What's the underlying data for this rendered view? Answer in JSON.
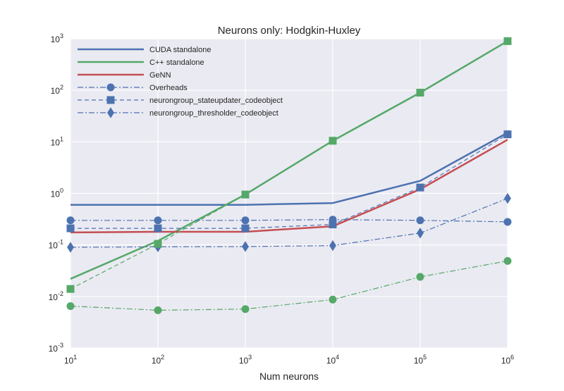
{
  "chart_data": {
    "type": "line",
    "title": "Neurons only: Hodgkin-Huxley",
    "xlabel": "Num neurons",
    "ylabel": "",
    "x_scale": "log",
    "y_scale": "log",
    "x": [
      10,
      100,
      1000,
      10000,
      100000,
      1000000
    ],
    "xlim": [
      10,
      1000000
    ],
    "ylim": [
      0.001,
      1000
    ],
    "x_ticks": [
      {
        "value": 10,
        "base": "10",
        "exp": "1"
      },
      {
        "value": 100,
        "base": "10",
        "exp": "2"
      },
      {
        "value": 1000,
        "base": "10",
        "exp": "3"
      },
      {
        "value": 10000,
        "base": "10",
        "exp": "4"
      },
      {
        "value": 100000,
        "base": "10",
        "exp": "5"
      },
      {
        "value": 1000000,
        "base": "10",
        "exp": "6"
      }
    ],
    "y_ticks": [
      {
        "value": 0.001,
        "base": "10",
        "exp": "-3"
      },
      {
        "value": 0.01,
        "base": "10",
        "exp": "-2"
      },
      {
        "value": 0.1,
        "base": "10",
        "exp": "-1"
      },
      {
        "value": 1,
        "base": "10",
        "exp": "0"
      },
      {
        "value": 10,
        "base": "10",
        "exp": "1"
      },
      {
        "value": 100,
        "base": "10",
        "exp": "2"
      },
      {
        "value": 1000,
        "base": "10",
        "exp": "3"
      }
    ],
    "grid": true,
    "legend_position": "top-left",
    "background_color": "#eaeaf2",
    "colors": {
      "blue": "#4c72b0",
      "green": "#55a868",
      "red": "#c44e52"
    },
    "legend": [
      {
        "label": "CUDA standalone",
        "color": "#4c72b0",
        "dash": "solid",
        "marker": "none"
      },
      {
        "label": "C++ standalone",
        "color": "#55a868",
        "dash": "solid",
        "marker": "none"
      },
      {
        "label": "GeNN",
        "color": "#c44e52",
        "dash": "solid",
        "marker": "none"
      },
      {
        "label": "Overheads",
        "color": "#4c72b0",
        "dash": "dashdot",
        "marker": "circle"
      },
      {
        "label": "neurongroup_stateupdater_codeobject",
        "color": "#4c72b0",
        "dash": "dashed",
        "marker": "square"
      },
      {
        "label": "neurongroup_thresholder_codeobject",
        "color": "#4c72b0",
        "dash": "dashdot",
        "marker": "diamond"
      }
    ],
    "series": [
      {
        "name": "CUDA standalone",
        "color": "#4c72b0",
        "dash": "solid",
        "marker": "none",
        "values": [
          0.6,
          0.6,
          0.6,
          0.65,
          1.75,
          15
        ]
      },
      {
        "name": "C++ standalone",
        "color": "#55a868",
        "dash": "solid",
        "marker": "none",
        "values": [
          0.022,
          0.12,
          0.95,
          10.5,
          90,
          900
        ]
      },
      {
        "name": "GeNN",
        "color": "#c44e52",
        "dash": "solid",
        "marker": "none",
        "values": [
          0.175,
          0.18,
          0.18,
          0.23,
          1.2,
          11
        ]
      },
      {
        "name": "Overheads",
        "color": "#4c72b0",
        "dash": "dashdot",
        "marker": "circle",
        "values": [
          0.3,
          0.3,
          0.3,
          0.31,
          0.3,
          0.28
        ]
      },
      {
        "name": "neurongroup_stateupdater_codeobject",
        "color": "#4c72b0",
        "dash": "dashed",
        "marker": "square",
        "values": [
          0.21,
          0.21,
          0.21,
          0.25,
          1.3,
          14
        ]
      },
      {
        "name": "neurongroup_thresholder_codeobject",
        "color": "#4c72b0",
        "dash": "dashdot",
        "marker": "diamond",
        "values": [
          0.09,
          0.092,
          0.093,
          0.097,
          0.17,
          0.8
        ]
      },
      {
        "color": "#55a868",
        "dash": "dashed",
        "marker": "square",
        "values": [
          0.014,
          0.105,
          0.95,
          10.5,
          90,
          900
        ]
      },
      {
        "color": "#55a868",
        "dash": "dashdot",
        "marker": "circle",
        "values": [
          0.0065,
          0.0054,
          0.0057,
          0.0087,
          0.024,
          0.049
        ]
      }
    ]
  }
}
